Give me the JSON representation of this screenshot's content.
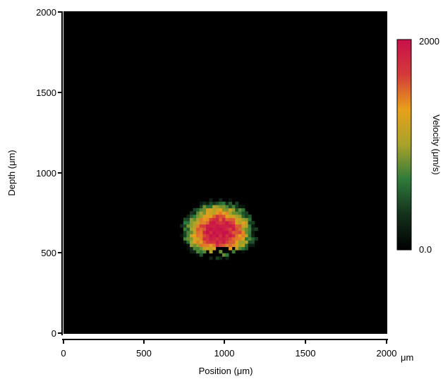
{
  "chart_data": {
    "type": "heatmap",
    "title": "",
    "xlabel": "Position (μm)",
    "ylabel": "Depth (μm)",
    "x_ticks": [
      "0",
      "500",
      "1000",
      "1500",
      "2000"
    ],
    "x_unit": "μm",
    "y_ticks": [
      "0",
      "500",
      "1000",
      "1500",
      "2000"
    ],
    "xlim": [
      0,
      2000
    ],
    "ylim": [
      0,
      2000
    ],
    "background_color": "#000000",
    "colorbar": {
      "label": "Velocity (μm/s)",
      "min_label": "0.0",
      "max_label": "2000",
      "range": [
        0,
        2000
      ],
      "colors": [
        "#000000",
        "#14301c",
        "#2e7a3a",
        "#a8a22a",
        "#e7a11a",
        "#d43a3a",
        "#c8104a"
      ]
    },
    "region": {
      "description_units": "data units (μm)",
      "center_x": 950,
      "center_y": 620,
      "radius_x": 230,
      "radius_y": 200,
      "peak_velocity": 2000,
      "shadow_center_x": 980,
      "shadow_center_y": 460,
      "cell_size": 20
    }
  }
}
